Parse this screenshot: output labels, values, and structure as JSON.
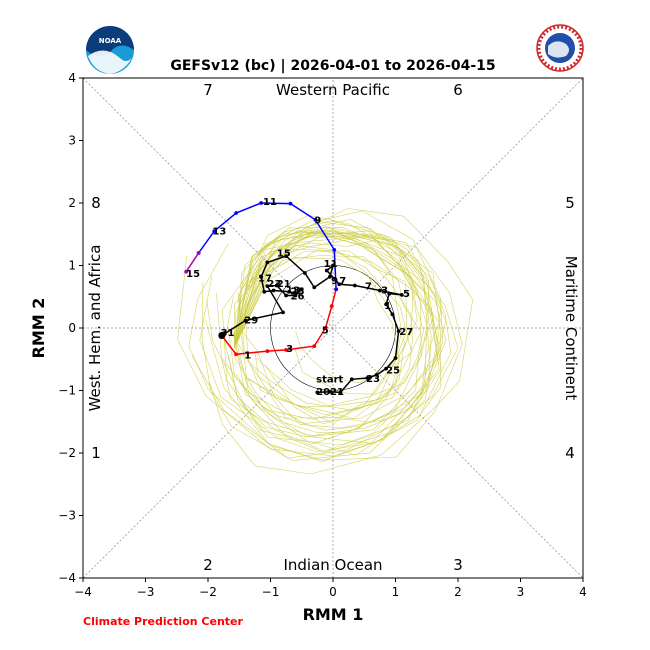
{
  "chart_data": {
    "type": "line",
    "title": "GEFSv12 (bc) | 2026-04-01 to 2026-04-15",
    "xlabel": "RMM 1",
    "ylabel": "RMM 2",
    "xlim": [
      -4,
      4
    ],
    "ylim": [
      -4,
      4
    ],
    "xticks": [
      "−4",
      "−3",
      "−2",
      "−1",
      "0",
      "1",
      "2",
      "3",
      "4"
    ],
    "yticks": [
      "−4",
      "−3",
      "−2",
      "−1",
      "0",
      "1",
      "2",
      "3",
      "4"
    ],
    "region_labels": {
      "top": "Western Pacific",
      "bottom": "Indian Ocean",
      "left": "West. Hem. and Africa",
      "right": "Maritime Continent"
    },
    "phase_labels": [
      "1",
      "2",
      "3",
      "4",
      "5",
      "6",
      "7",
      "8"
    ],
    "credit": "Climate Prediction Center",
    "colors": {
      "observed": "#000000",
      "forecast_week1": "#ff0000",
      "forecast_week2": "#0000ff",
      "forecast_end": "#b300b3",
      "ensemble": "#cccc44",
      "credit": "#ff0000"
    },
    "series": [
      {
        "name": "observed",
        "points": [
          [
            -0.25,
            -1.03
          ],
          [
            -0.05,
            -1.02
          ],
          [
            0.12,
            -1.03
          ],
          [
            0.3,
            -0.82
          ],
          [
            0.55,
            -0.8
          ],
          [
            0.7,
            -0.75
          ],
          [
            0.85,
            -0.65
          ],
          [
            1.0,
            -0.48
          ],
          [
            1.05,
            -0.05
          ],
          [
            0.95,
            0.22
          ],
          [
            0.85,
            0.38
          ],
          [
            0.9,
            0.55
          ],
          [
            1.1,
            0.53
          ],
          [
            0.75,
            0.6
          ],
          [
            0.35,
            0.68
          ],
          [
            0.1,
            0.7
          ],
          [
            -0.1,
            0.92
          ],
          [
            0.0,
            1.0
          ],
          [
            -0.05,
            0.82
          ],
          [
            -0.3,
            0.65
          ],
          [
            -0.45,
            0.88
          ],
          [
            -0.75,
            1.15
          ],
          [
            -1.05,
            1.05
          ],
          [
            -1.15,
            0.82
          ],
          [
            -1.1,
            0.58
          ],
          [
            -0.95,
            0.6
          ],
          [
            -0.7,
            0.58
          ],
          [
            -0.6,
            0.56
          ],
          [
            -0.5,
            0.62
          ],
          [
            -0.6,
            0.52
          ],
          [
            -0.75,
            0.52
          ],
          [
            -0.9,
            0.68
          ],
          [
            -1.05,
            0.67
          ],
          [
            -0.8,
            0.25
          ],
          [
            -1.4,
            0.12
          ],
          [
            -1.78,
            -0.12
          ]
        ]
      },
      {
        "name": "forecast_week1",
        "points": [
          [
            -1.78,
            -0.12
          ],
          [
            -1.55,
            -0.42
          ],
          [
            -1.05,
            -0.37
          ],
          [
            -0.75,
            -0.35
          ],
          [
            -0.3,
            -0.29
          ],
          [
            -0.12,
            0.0
          ],
          [
            -0.02,
            0.35
          ],
          [
            0.05,
            0.62
          ]
        ]
      },
      {
        "name": "forecast_week2",
        "points": [
          [
            0.05,
            0.62
          ],
          [
            0.02,
            1.25
          ],
          [
            -0.28,
            1.73
          ],
          [
            -0.68,
            1.99
          ],
          [
            -1.15,
            2.0
          ],
          [
            -1.55,
            1.84
          ],
          [
            -1.9,
            1.55
          ],
          [
            -2.15,
            1.2
          ]
        ]
      },
      {
        "name": "forecast_end",
        "points": [
          [
            -2.15,
            1.2
          ],
          [
            -2.35,
            0.9
          ]
        ]
      }
    ],
    "point_labels": [
      {
        "text": "start",
        "x": -0.27,
        "y": -0.81
      },
      {
        "text": "2021",
        "x": -0.27,
        "y": -1.01
      },
      {
        "text": "23",
        "x": 0.53,
        "y": -0.8
      },
      {
        "text": "25",
        "x": 0.85,
        "y": -0.66
      },
      {
        "text": "27",
        "x": 1.06,
        "y": -0.05
      },
      {
        "text": "1",
        "x": 0.82,
        "y": 0.37
      },
      {
        "text": "3",
        "x": 0.77,
        "y": 0.62
      },
      {
        "text": "5",
        "x": 1.12,
        "y": 0.56
      },
      {
        "text": "7",
        "x": 0.51,
        "y": 0.68
      },
      {
        "text": "9",
        "x": -0.03,
        "y": 0.77
      },
      {
        "text": "7",
        "x": 0.1,
        "y": 0.77
      },
      {
        "text": "11",
        "x": -0.15,
        "y": 1.04
      },
      {
        "text": "15",
        "x": -0.9,
        "y": 1.21
      },
      {
        "text": "17",
        "x": -1.2,
        "y": 0.81
      },
      {
        "text": "23",
        "x": -1.05,
        "y": 0.72
      },
      {
        "text": "21",
        "x": -0.9,
        "y": 0.72
      },
      {
        "text": "13",
        "x": -0.75,
        "y": 0.62
      },
      {
        "text": "25",
        "x": -0.68,
        "y": 0.6
      },
      {
        "text": "26",
        "x": -0.68,
        "y": 0.52
      },
      {
        "text": "29",
        "x": -1.42,
        "y": 0.14
      },
      {
        "text": "31",
        "x": -1.8,
        "y": -0.06
      },
      {
        "text": "1",
        "x": -1.42,
        "y": -0.42
      },
      {
        "text": "3",
        "x": -0.75,
        "y": -0.32
      },
      {
        "text": "5",
        "x": -0.18,
        "y": -0.02
      },
      {
        "text": "9",
        "x": -0.3,
        "y": 1.74
      },
      {
        "text": "11",
        "x": -1.12,
        "y": 2.03
      },
      {
        "text": "13",
        "x": -1.93,
        "y": 1.56
      },
      {
        "text": "15",
        "x": -2.35,
        "y": 0.88
      }
    ]
  }
}
